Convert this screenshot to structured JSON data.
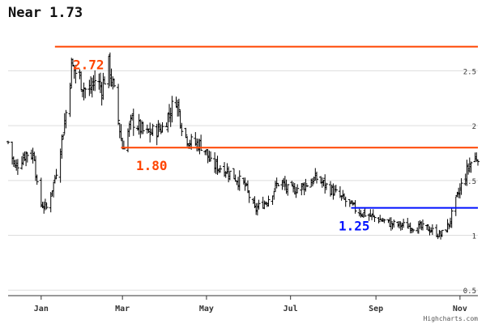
{
  "chart_data": {
    "type": "ohlc",
    "title": "Near 1.73",
    "credit": "Highcharts.com",
    "xlabel": "",
    "ylabel": "",
    "x_ticks": [
      "Jan",
      "Mar",
      "May",
      "Jul",
      "Sep",
      "Nov"
    ],
    "y_ticks": [
      "0.5",
      "1",
      "1.5",
      "2",
      "2.5"
    ],
    "ylim": [
      0.45,
      2.85
    ],
    "grid": "horizontal",
    "levels": [
      {
        "value": 2.72,
        "label": "2.72",
        "color": "#ff4400",
        "from": "Jan 18"
      },
      {
        "value": 1.8,
        "label": "1.80",
        "color": "#ff4400",
        "from": "Mar 7"
      },
      {
        "value": 1.25,
        "label": "1.25",
        "color": "#0011ff",
        "from": "Aug 21"
      }
    ],
    "anchors": [
      {
        "date": "Dec 15",
        "close": 1.85
      },
      {
        "date": "Dec 20",
        "close": 1.62
      },
      {
        "date": "Dec 28",
        "close": 1.75
      },
      {
        "date": "Jan 3",
        "close": 1.73
      },
      {
        "date": "Jan 6",
        "close": 1.3
      },
      {
        "date": "Jan 12",
        "close": 1.25
      },
      {
        "date": "Jan 18",
        "close": 1.52
      },
      {
        "date": "Jan 22",
        "close": 1.8
      },
      {
        "date": "Jan 26",
        "close": 2.12
      },
      {
        "date": "Jan 30",
        "close": 2.55
      },
      {
        "date": "Feb 6",
        "close": 2.4
      },
      {
        "date": "Feb 11",
        "close": 2.28
      },
      {
        "date": "Feb 16",
        "close": 2.42
      },
      {
        "date": "Feb 21",
        "close": 2.35
      },
      {
        "date": "Feb 26",
        "close": 2.55
      },
      {
        "date": "Mar 2",
        "close": 2.3
      },
      {
        "date": "Mar 5",
        "close": 2.05
      },
      {
        "date": "Mar 8",
        "close": 1.8
      },
      {
        "date": "Mar 15",
        "close": 2.05
      },
      {
        "date": "Mar 25",
        "close": 1.92
      },
      {
        "date": "Apr 6",
        "close": 1.98
      },
      {
        "date": "Apr 16",
        "close": 2.25
      },
      {
        "date": "Apr 21",
        "close": 1.95
      },
      {
        "date": "Apr 26",
        "close": 1.85
      },
      {
        "date": "May 6",
        "close": 1.82
      },
      {
        "date": "May 11",
        "close": 1.65
      },
      {
        "date": "May 22",
        "close": 1.6
      },
      {
        "date": "Jun 5",
        "close": 1.45
      },
      {
        "date": "Jun 12",
        "close": 1.23
      },
      {
        "date": "Jun 21",
        "close": 1.32
      },
      {
        "date": "Jun 30",
        "close": 1.5
      },
      {
        "date": "Jul 7",
        "close": 1.4
      },
      {
        "date": "Jul 17",
        "close": 1.45
      },
      {
        "date": "Jul 27",
        "close": 1.52
      },
      {
        "date": "Aug 6",
        "close": 1.42
      },
      {
        "date": "Aug 16",
        "close": 1.32
      },
      {
        "date": "Aug 26",
        "close": 1.22
      },
      {
        "date": "Sep 5",
        "close": 1.17
      },
      {
        "date": "Sep 20",
        "close": 1.1
      },
      {
        "date": "Oct 5",
        "close": 1.08
      },
      {
        "date": "Oct 16",
        "close": 1.06
      },
      {
        "date": "Oct 25",
        "close": 1.0
      },
      {
        "date": "Oct 31",
        "close": 1.1
      },
      {
        "date": "Nov 6",
        "close": 1.35
      },
      {
        "date": "Nov 11",
        "close": 1.52
      },
      {
        "date": "Nov 15",
        "close": 1.65
      },
      {
        "date": "Nov 21",
        "close": 1.73
      }
    ]
  },
  "colors": {
    "bars": "#000000",
    "grid": "#dddddd",
    "axis": "#333333",
    "tick_text": "#333333"
  }
}
